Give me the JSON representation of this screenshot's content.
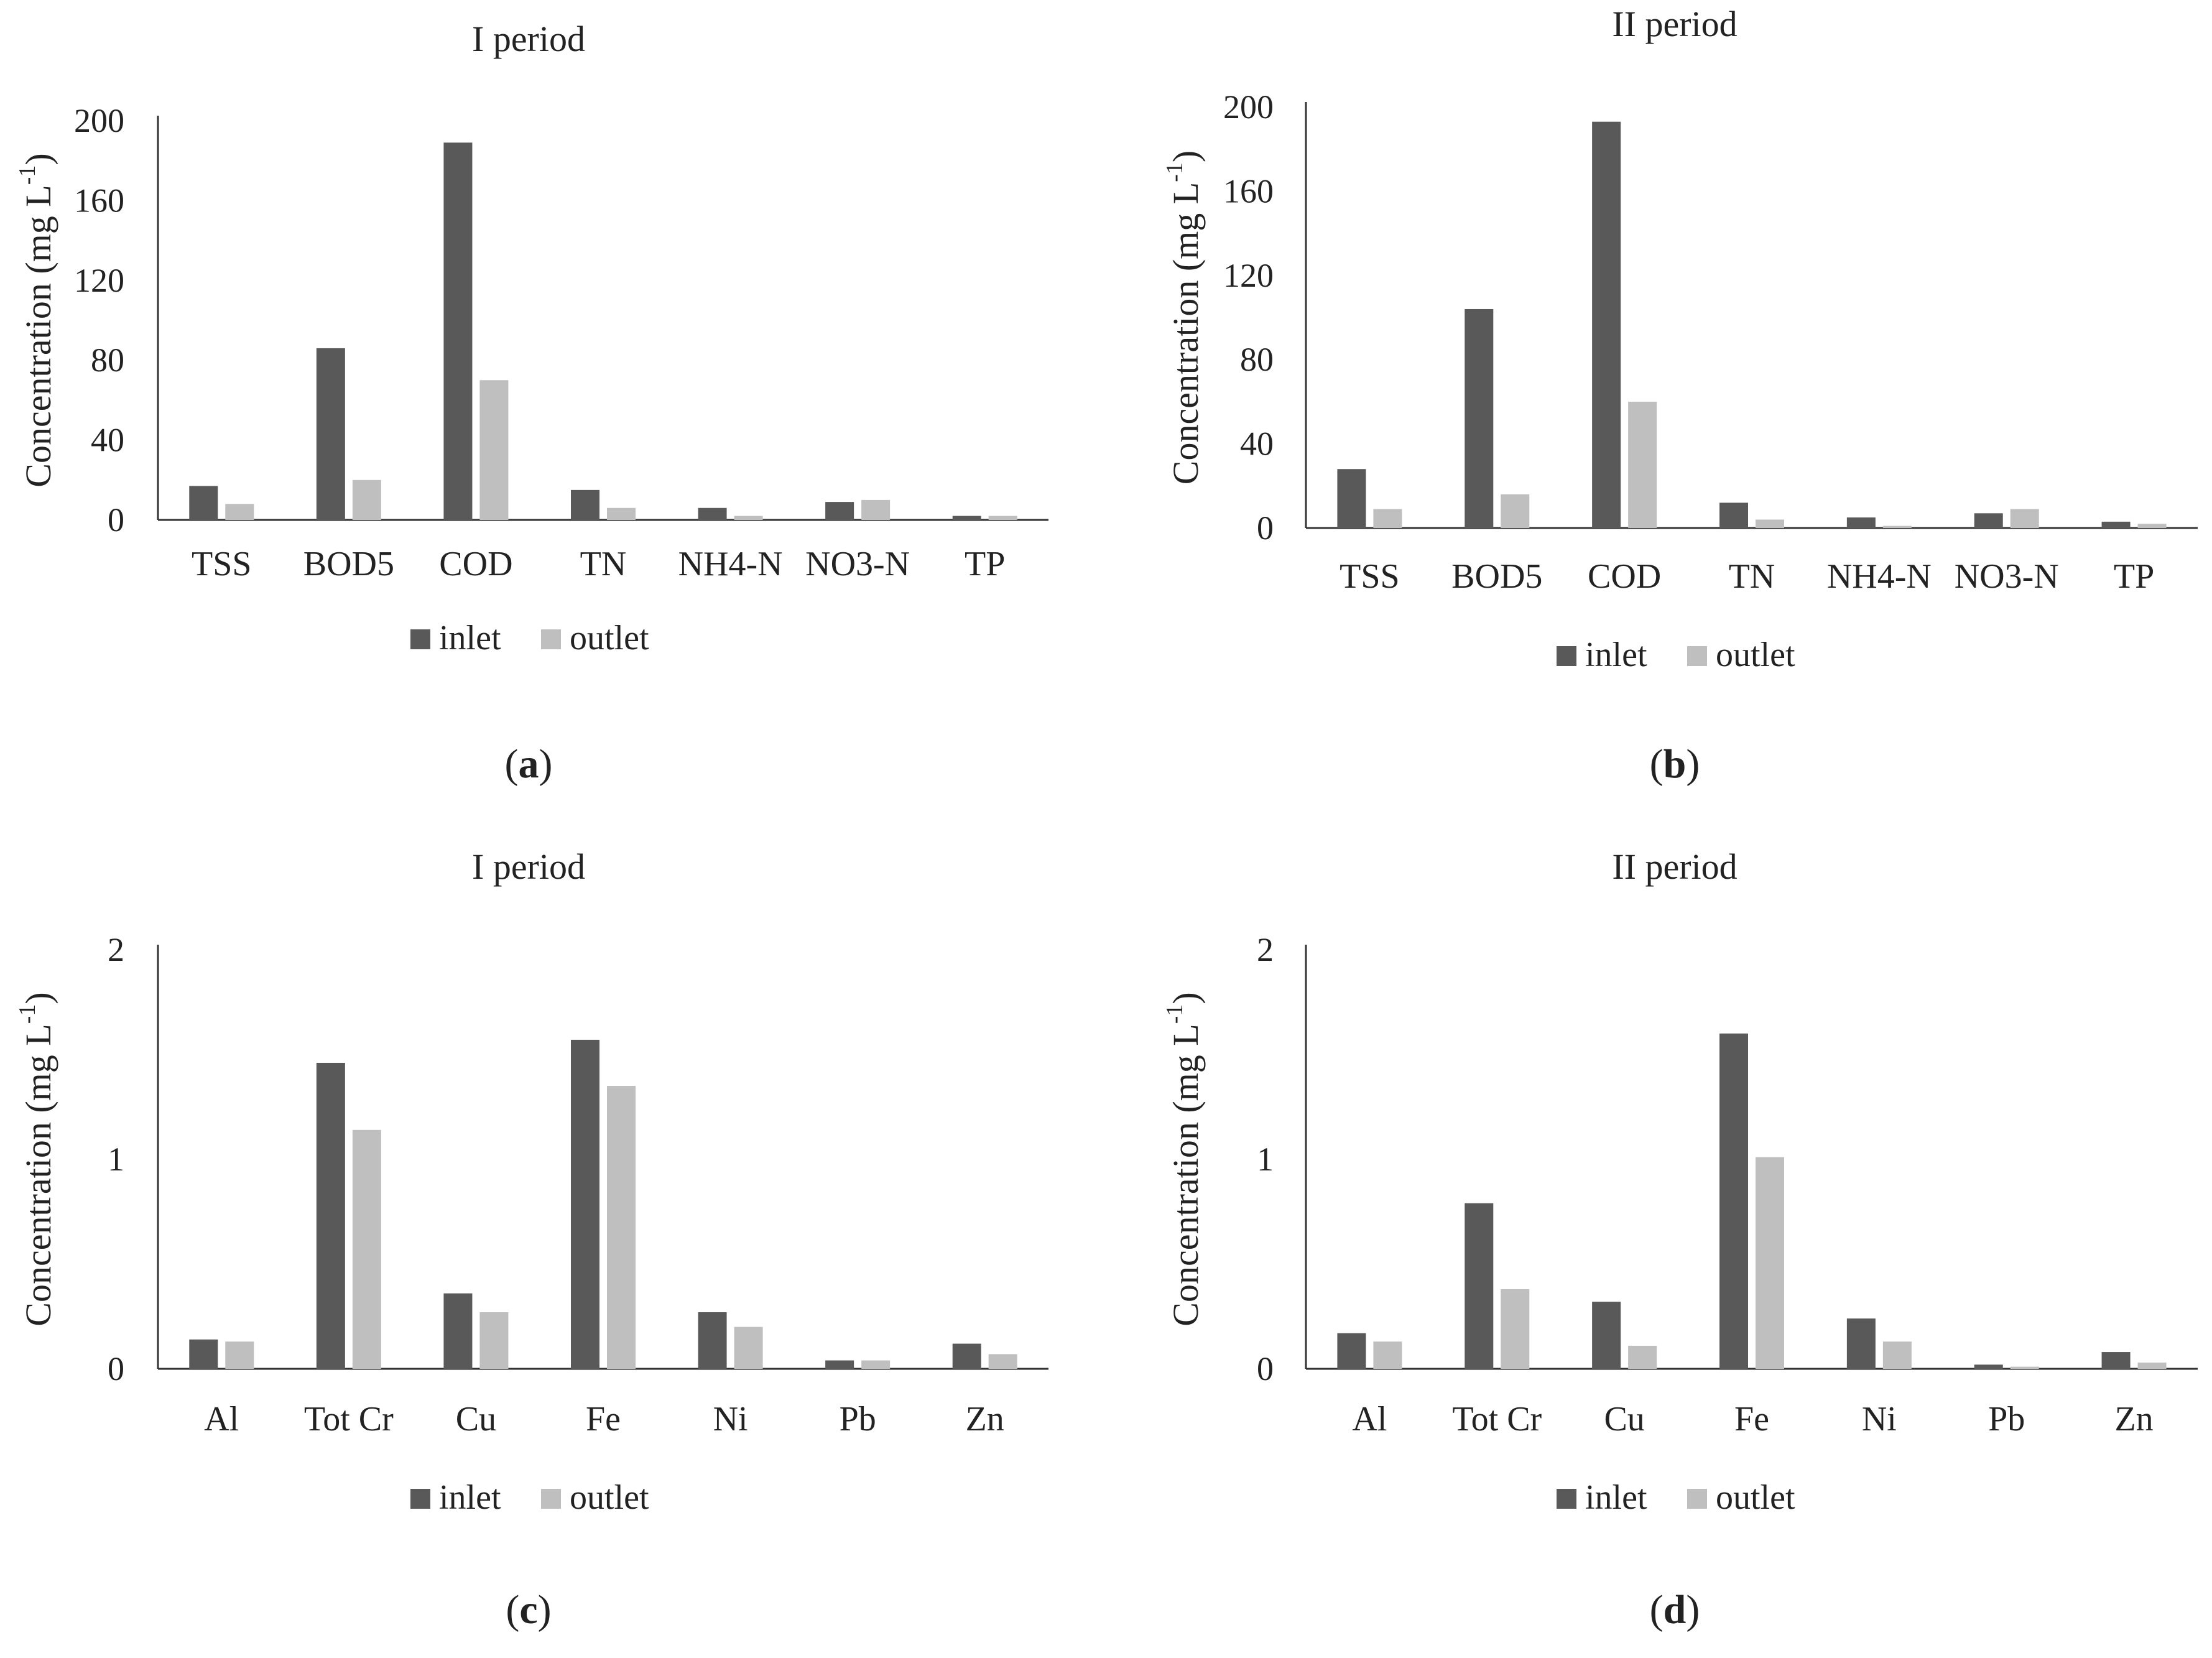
{
  "colors": {
    "inlet": "#595959",
    "outlet": "#bfbfbf",
    "axis": "#333333",
    "text": "#222222"
  },
  "chart_data": [
    {
      "type": "bar",
      "panel_label": [
        "(",
        "a",
        ")"
      ],
      "title": "I period",
      "ylabel": "Concentration (mg L",
      "ylabel_sup": "-1",
      "ylabel_close": ")",
      "ylim": [
        0,
        200
      ],
      "yticks": [
        0,
        40,
        80,
        120,
        160,
        200
      ],
      "categories": [
        "TSS",
        "BOD5",
        "COD",
        "TN",
        "NH4-N",
        "NO3-N",
        "TP"
      ],
      "series": [
        {
          "name": "inlet",
          "values": [
            17,
            86,
            189,
            15,
            6,
            9,
            2
          ]
        },
        {
          "name": "outlet",
          "values": [
            8,
            20,
            70,
            6,
            2,
            10,
            2
          ]
        }
      ],
      "legend": [
        "inlet",
        "outlet"
      ]
    },
    {
      "type": "bar",
      "panel_label": [
        "(",
        "b",
        ")"
      ],
      "title": "II period",
      "ylabel": "Concentration (mg L",
      "ylabel_sup": "-1",
      "ylabel_close": ")",
      "ylim": [
        0,
        200
      ],
      "yticks": [
        0,
        40,
        80,
        120,
        160,
        200
      ],
      "categories": [
        "TSS",
        "BOD5",
        "COD",
        "TN",
        "NH4-N",
        "NO3-N",
        "TP"
      ],
      "series": [
        {
          "name": "inlet",
          "values": [
            28,
            104,
            193,
            12,
            5,
            7,
            3
          ]
        },
        {
          "name": "outlet",
          "values": [
            9,
            16,
            60,
            4,
            1,
            9,
            2
          ]
        }
      ],
      "legend": [
        "inlet",
        "outlet"
      ]
    },
    {
      "type": "bar",
      "panel_label": [
        "(",
        "c",
        ")"
      ],
      "title": "I period",
      "ylabel": "Concentration (mg L",
      "ylabel_sup": "-1",
      "ylabel_close": ")",
      "ylim": [
        0,
        2
      ],
      "yticks": [
        0,
        1,
        2
      ],
      "categories": [
        "Al",
        "Tot Cr",
        "Cu",
        "Fe",
        "Ni",
        "Pb",
        "Zn"
      ],
      "series": [
        {
          "name": "inlet",
          "values": [
            0.14,
            1.46,
            0.36,
            1.57,
            0.27,
            0.04,
            0.12
          ]
        },
        {
          "name": "outlet",
          "values": [
            0.13,
            1.14,
            0.27,
            1.35,
            0.2,
            0.04,
            0.07
          ]
        }
      ],
      "legend": [
        "inlet",
        "outlet"
      ]
    },
    {
      "type": "bar",
      "panel_label": [
        "(",
        "d",
        ")"
      ],
      "title": "II period",
      "ylabel": "Concentration (mg L",
      "ylabel_sup": "-1",
      "ylabel_close": ")",
      "ylim": [
        0,
        2
      ],
      "yticks": [
        0,
        1,
        2
      ],
      "categories": [
        "Al",
        "Tot Cr",
        "Cu",
        "Fe",
        "Ni",
        "Pb",
        "Zn"
      ],
      "series": [
        {
          "name": "inlet",
          "values": [
            0.17,
            0.79,
            0.32,
            1.6,
            0.24,
            0.02,
            0.08
          ]
        },
        {
          "name": "outlet",
          "values": [
            0.13,
            0.38,
            0.11,
            1.01,
            0.13,
            0.01,
            0.03
          ]
        }
      ],
      "legend": [
        "inlet",
        "outlet"
      ]
    }
  ]
}
